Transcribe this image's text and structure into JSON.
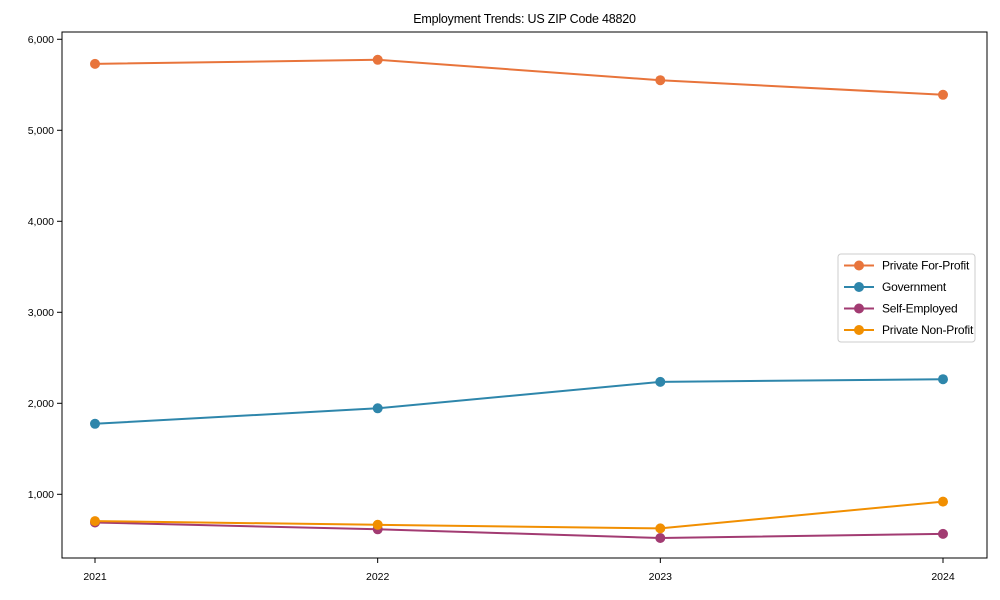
{
  "chart_data": {
    "type": "line",
    "title": "Employment Trends: US ZIP Code 48820",
    "categories": [
      "2021",
      "2022",
      "2023",
      "2024"
    ],
    "series": [
      {
        "name": "Private For-Profit",
        "color": "#E8743B",
        "values": [
          5730,
          5775,
          5550,
          5390
        ]
      },
      {
        "name": "Government",
        "color": "#2E86AB",
        "values": [
          1775,
          1945,
          2235,
          2265
        ]
      },
      {
        "name": "Self-Employed",
        "color": "#A23B72",
        "values": [
          690,
          615,
          520,
          565
        ]
      },
      {
        "name": "Private Non-Profit",
        "color": "#F18F01",
        "values": [
          705,
          665,
          625,
          920
        ]
      }
    ],
    "xlabel": "",
    "ylabel": "",
    "ylim": [
      300,
      6080
    ],
    "yticks": [
      1000,
      2000,
      3000,
      4000,
      5000,
      6000
    ],
    "ytick_labels": [
      "1,000",
      "2,000",
      "3,000",
      "4,000",
      "5,000",
      "6,000"
    ],
    "grid": false,
    "legend_position": "center-right",
    "axis_color": "#000000",
    "tick_label_color": "#000000",
    "legend_border_color": "#cccccc",
    "background_color": "#ffffff"
  }
}
